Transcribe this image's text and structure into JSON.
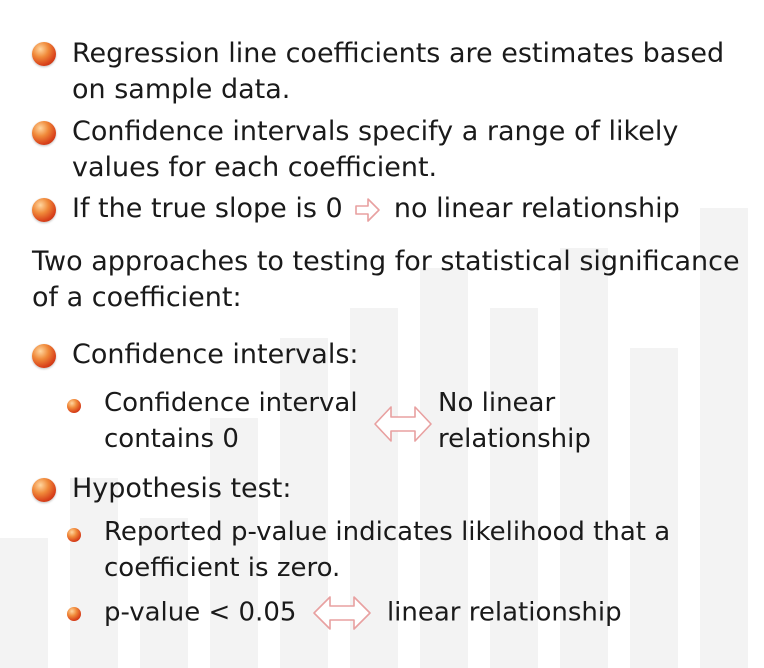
{
  "bullets_top": [
    {
      "line1": "Regression line coefficients are estimates based",
      "line2": "on sample data."
    },
    {
      "line1": "Confidence intervals specify a range of likely",
      "line2": "values for each coefficient."
    }
  ],
  "slope": {
    "left": "If the true slope is 0",
    "right": "no linear relationship"
  },
  "para": {
    "line1": "Two approaches to testing for statistical significance",
    "line2": "of a coefficient:"
  },
  "ci": {
    "heading": "Confidence intervals:",
    "left1": "Confidence interval",
    "left2": "contains 0",
    "right1": "No linear",
    "right2": "relationship"
  },
  "ht": {
    "heading": "Hypothesis test:",
    "sub1_line1": "Reported p-value indicates likelihood that a",
    "sub1_line2": "coefficient is zero.",
    "sub2_left": "p-value < 0.05",
    "sub2_right": "linear relationship"
  },
  "colors": {
    "bullet": "#d8401a",
    "arrow_stroke": "#e8a0a0",
    "text": "#1a1a1a"
  }
}
